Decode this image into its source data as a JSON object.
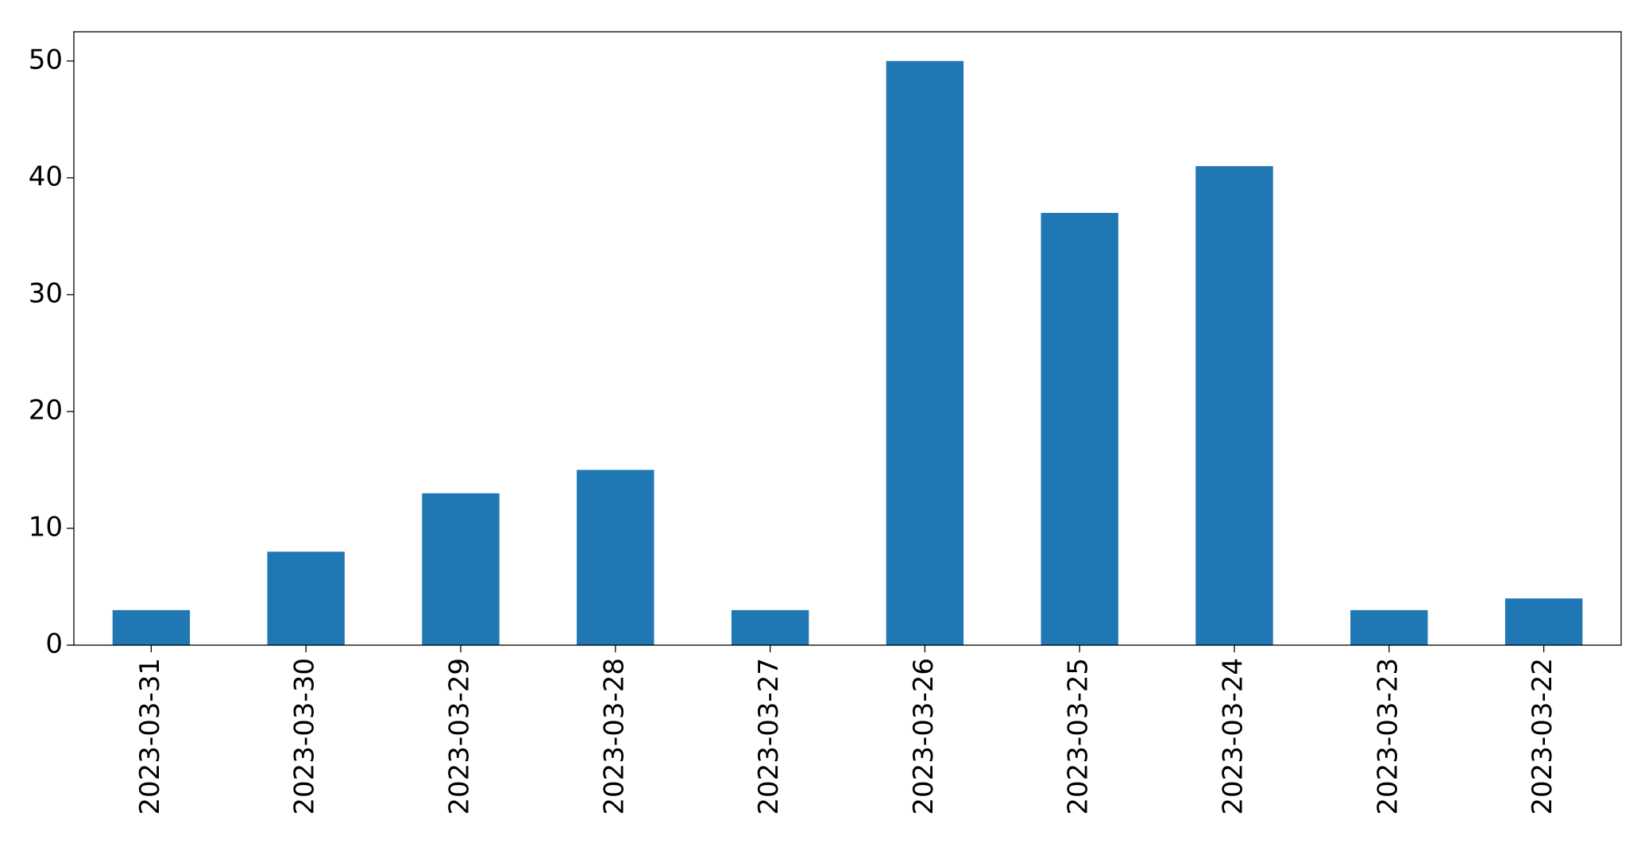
{
  "chart_data": {
    "type": "bar",
    "categories": [
      "2023-03-31",
      "2023-03-30",
      "2023-03-29",
      "2023-03-28",
      "2023-03-27",
      "2023-03-26",
      "2023-03-25",
      "2023-03-24",
      "2023-03-23",
      "2023-03-22"
    ],
    "values": [
      3,
      8,
      13,
      15,
      3,
      50,
      37,
      41,
      3,
      4
    ],
    "color": "#1f77b4",
    "ylim": [
      0,
      52.5
    ],
    "yticks": [
      0,
      10,
      20,
      30,
      40,
      50
    ],
    "grid": false
  }
}
